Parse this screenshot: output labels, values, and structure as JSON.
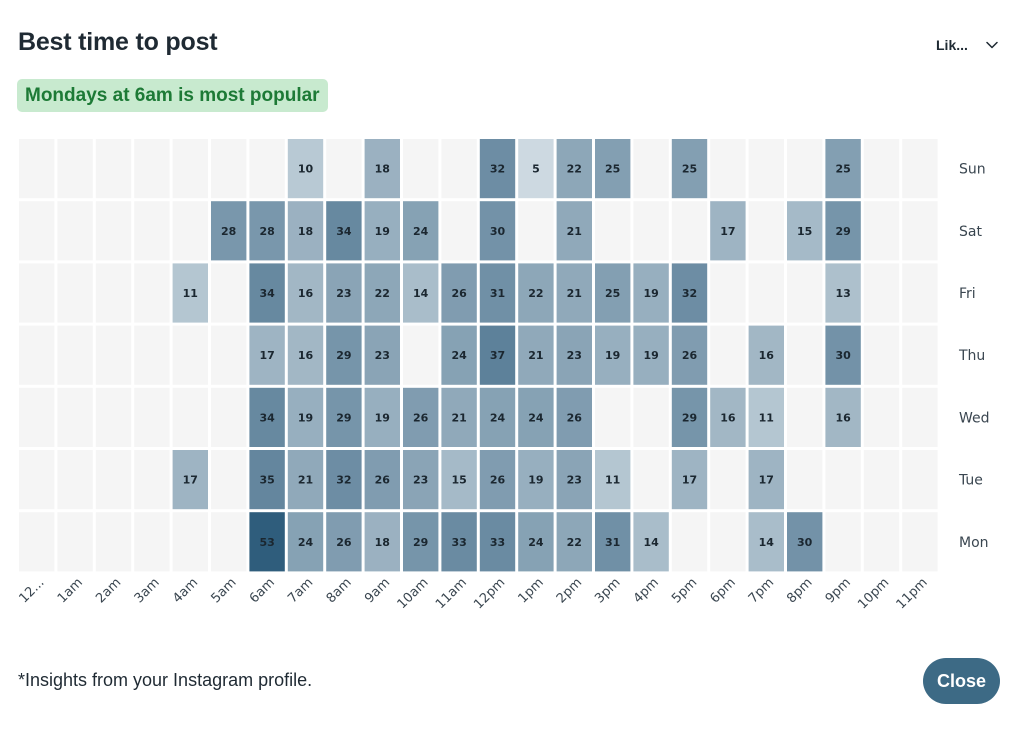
{
  "header": {
    "title": "Best time to post",
    "metric_select": {
      "value": "Lik...",
      "icon": "chevron-down-icon"
    }
  },
  "highlight": {
    "text": "Mondays at 6am is most popular"
  },
  "footer": {
    "note": "*Insights from your Instagram profile.",
    "close_label": "Close"
  },
  "colors": {
    "empty_cell": "#f5f5f5",
    "scale_low": "#e9eff3",
    "scale_high": "#2f5d7c",
    "badge_bg": "#c8eacf",
    "badge_text": "#1d7a36",
    "button_bg": "#3d6a85"
  },
  "chart_data": {
    "type": "heatmap",
    "title": "Best time to post",
    "x_categories": [
      "12...",
      "1am",
      "2am",
      "3am",
      "4am",
      "5am",
      "6am",
      "7am",
      "8am",
      "9am",
      "10am",
      "11am",
      "12pm",
      "1pm",
      "2pm",
      "3pm",
      "4pm",
      "5pm",
      "6pm",
      "7pm",
      "8pm",
      "9pm",
      "10pm",
      "11pm"
    ],
    "y_categories": [
      "Sun",
      "Sat",
      "Fri",
      "Thu",
      "Wed",
      "Tue",
      "Mon"
    ],
    "value_range": [
      0,
      53
    ],
    "values": [
      [
        null,
        null,
        null,
        null,
        null,
        null,
        null,
        10,
        null,
        18,
        null,
        null,
        32,
        5,
        22,
        25,
        null,
        25,
        null,
        null,
        null,
        25,
        null,
        null
      ],
      [
        null,
        null,
        null,
        null,
        null,
        28,
        28,
        18,
        34,
        19,
        24,
        null,
        30,
        null,
        21,
        null,
        null,
        null,
        17,
        null,
        15,
        29,
        null,
        null
      ],
      [
        null,
        null,
        null,
        null,
        11,
        null,
        34,
        16,
        23,
        22,
        14,
        26,
        31,
        22,
        21,
        25,
        19,
        32,
        null,
        null,
        null,
        13,
        null,
        null
      ],
      [
        null,
        null,
        null,
        null,
        null,
        null,
        17,
        16,
        29,
        23,
        null,
        24,
        37,
        21,
        23,
        19,
        19,
        26,
        null,
        16,
        null,
        30,
        null,
        null
      ],
      [
        null,
        null,
        null,
        null,
        null,
        null,
        34,
        19,
        29,
        19,
        26,
        21,
        24,
        24,
        26,
        null,
        null,
        29,
        16,
        11,
        null,
        16,
        null,
        null
      ],
      [
        null,
        null,
        null,
        null,
        17,
        null,
        35,
        21,
        32,
        26,
        23,
        15,
        26,
        19,
        23,
        11,
        null,
        17,
        null,
        17,
        null,
        null,
        null,
        null
      ],
      [
        null,
        null,
        null,
        null,
        null,
        null,
        53,
        24,
        26,
        18,
        29,
        33,
        33,
        24,
        22,
        31,
        14,
        null,
        null,
        14,
        30,
        null,
        null,
        null
      ]
    ]
  }
}
